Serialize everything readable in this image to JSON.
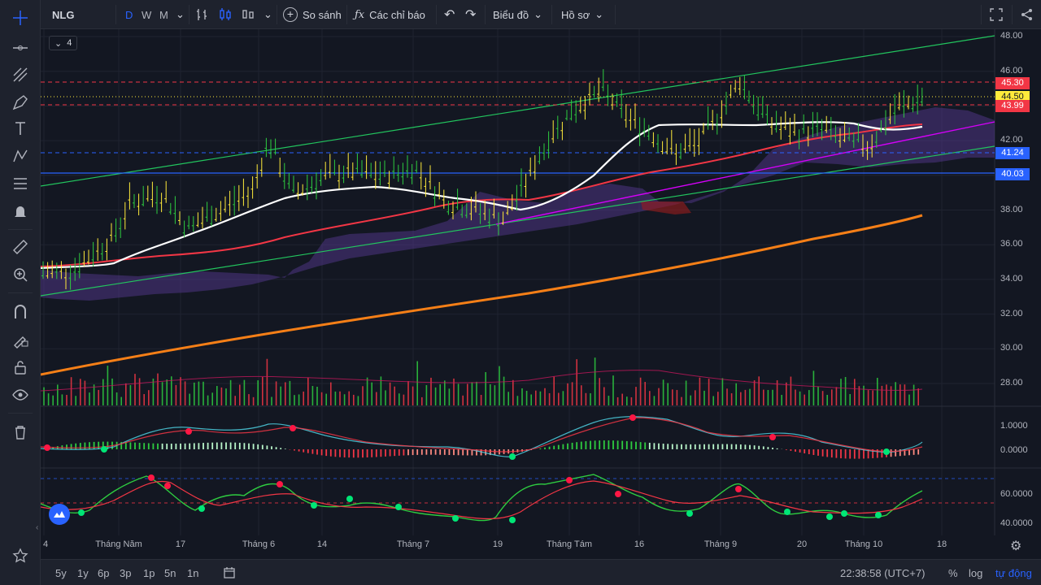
{
  "header": {
    "symbol": "NLG",
    "intervals": [
      "D",
      "W",
      "M"
    ],
    "compare_label": "So sánh",
    "indicators_label": "Các chỉ báo",
    "chart_label": "Biểu đồ",
    "profile_label": "Hồ sơ"
  },
  "legend": {
    "collapse_count": "4"
  },
  "colors": {
    "background": "#131722",
    "up": "#26a69a",
    "bull_bar": "#2ecc40",
    "accent_blue": "#2962ff",
    "red_line": "#f23645",
    "orange_ma": "#f57f17",
    "white_ma": "#ffffff",
    "magenta": "#d500f9",
    "green_channel": "#22c55e"
  },
  "price_axis": {
    "ticks": [
      "48.00",
      "46.00",
      "44.00",
      "42.00",
      "40.00",
      "38.00",
      "36.00",
      "34.00",
      "32.00",
      "30.00",
      "28.00"
    ],
    "markers": [
      {
        "label": "45.30",
        "bg": "#f23645",
        "fg": "#ffffff"
      },
      {
        "label": "44.50",
        "bg": "#ffeb3b",
        "fg": "#131722"
      },
      {
        "label": "43.99",
        "bg": "#f23645",
        "fg": "#ffffff"
      },
      {
        "label": "41.24",
        "bg": "#2962ff",
        "fg": "#ffffff"
      },
      {
        "label": "40.03",
        "bg": "#2962ff",
        "fg": "#ffffff"
      }
    ]
  },
  "macd_axis": {
    "ticks": [
      "1.0000",
      "0.0000"
    ]
  },
  "rsi_axis": {
    "ticks": [
      "60.0000",
      "40.0000"
    ]
  },
  "time_axis": {
    "ticks": [
      "4",
      "Tháng Năm",
      "17",
      "Tháng 6",
      "14",
      "Tháng 7",
      "19",
      "Tháng Tám",
      "16",
      "Tháng 9",
      "20",
      "Tháng 10",
      "18"
    ]
  },
  "bottom_bar": {
    "ranges": [
      "5y",
      "1y",
      "6p",
      "3p",
      "1p",
      "5n",
      "1n"
    ],
    "clock": "22:38:58 (UTC+7)",
    "percent_label": "%",
    "log_label": "log",
    "auto_label": "tự động"
  },
  "icons": [
    "crosshair-icon",
    "trend-line-icon",
    "pitchfork-icon",
    "brush-icon",
    "text-icon",
    "pattern-icon",
    "fib-icon",
    "alert-icon",
    "ruler-icon",
    "zoom-icon",
    "magnet-icon",
    "lock-draw-icon",
    "unlock-icon",
    "eye-icon",
    "trash-icon",
    "star-icon",
    "fullscreen-icon",
    "share-icon",
    "settings-icon",
    "calendar-icon",
    "compare-icon",
    "indicators-icon",
    "undo-icon",
    "redo-icon"
  ]
}
